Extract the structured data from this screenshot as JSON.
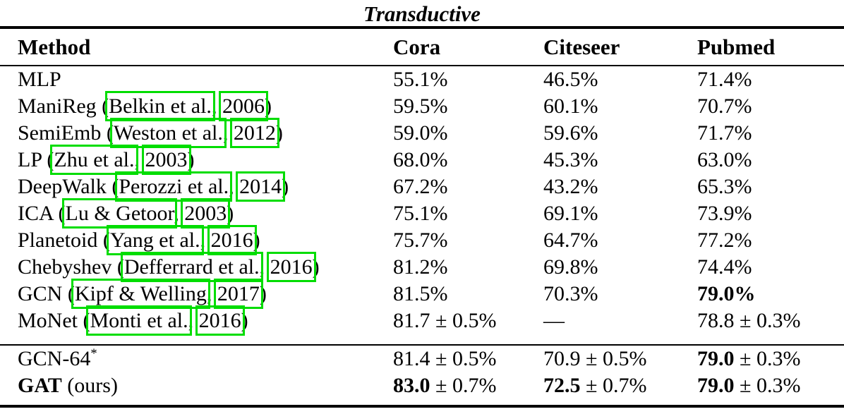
{
  "table": {
    "title": "Transductive",
    "columns": {
      "method": "Method",
      "cora": "Cora",
      "citeseer": "Citeseer",
      "pubmed": "Pubmed"
    },
    "rows": [
      {
        "method": {
          "pre": "MLP"
        },
        "cora": {
          "r": "55.1%"
        },
        "citeseer": {
          "r": "46.5%"
        },
        "pubmed": {
          "r": "71.4%"
        }
      },
      {
        "method": {
          "pre": "ManiReg (",
          "name": "Belkin et al.",
          "sep": ", ",
          "year": "2006",
          "post": ")"
        },
        "cora": {
          "r": "59.5%"
        },
        "citeseer": {
          "r": "60.1%"
        },
        "pubmed": {
          "r": "70.7%"
        }
      },
      {
        "method": {
          "pre": "SemiEmb (",
          "name": "Weston et al.",
          "sep": ", ",
          "year": "2012",
          "post": ")"
        },
        "cora": {
          "r": "59.0%"
        },
        "citeseer": {
          "r": "59.6%"
        },
        "pubmed": {
          "r": "71.7%"
        }
      },
      {
        "method": {
          "pre": "LP (",
          "name": "Zhu et al.",
          "sep": ", ",
          "year": "2003",
          "post": ")"
        },
        "cora": {
          "r": "68.0%"
        },
        "citeseer": {
          "r": "45.3%"
        },
        "pubmed": {
          "r": "63.0%"
        }
      },
      {
        "method": {
          "pre": "DeepWalk (",
          "name": "Perozzi et al.",
          "sep": ", ",
          "year": "2014",
          "post": ")"
        },
        "cora": {
          "r": "67.2%"
        },
        "citeseer": {
          "r": "43.2%"
        },
        "pubmed": {
          "r": "65.3%"
        }
      },
      {
        "method": {
          "pre": "ICA (",
          "name": "Lu & Getoor",
          "sep": ", ",
          "year": "2003",
          "post": ")"
        },
        "cora": {
          "r": "75.1%"
        },
        "citeseer": {
          "r": "69.1%"
        },
        "pubmed": {
          "r": "73.9%"
        }
      },
      {
        "method": {
          "pre": "Planetoid (",
          "name": "Yang et al.",
          "sep": ", ",
          "year": "2016",
          "post": ")"
        },
        "cora": {
          "r": "75.7%"
        },
        "citeseer": {
          "r": "64.7%"
        },
        "pubmed": {
          "r": "77.2%"
        }
      },
      {
        "method": {
          "pre": "Chebyshev (",
          "name": "Defferrard et al.",
          "sep": ", ",
          "year": "2016",
          "post": ")"
        },
        "cora": {
          "r": "81.2%"
        },
        "citeseer": {
          "r": "69.8%"
        },
        "pubmed": {
          "r": "74.4%"
        }
      },
      {
        "method": {
          "pre": "GCN (",
          "name": "Kipf & Welling",
          "sep": ", ",
          "year": "2017",
          "post": ")"
        },
        "cora": {
          "r": "81.5%"
        },
        "citeseer": {
          "r": "70.3%"
        },
        "pubmed": {
          "b": "79.0%"
        }
      },
      {
        "method": {
          "pre": "MoNet (",
          "name": "Monti et al.",
          "sep": ", ",
          "year": "2016",
          "post": ")"
        },
        "cora": {
          "r": "81.7 ± 0.5%"
        },
        "citeseer": {
          "r": "—"
        },
        "pubmed": {
          "r": "78.8 ± 0.3%"
        }
      }
    ],
    "footer_rows": [
      {
        "method": {
          "pre": "GCN-64",
          "sup": "*"
        },
        "cora": {
          "r": "81.4 ± 0.5%"
        },
        "citeseer": {
          "r": "70.9 ± 0.5%"
        },
        "pubmed": {
          "b": "79.0",
          "r": " ± 0.3%"
        }
      },
      {
        "method": {
          "b": "GAT",
          "pre": " (ours)"
        },
        "cora": {
          "b": "83.0",
          "r": " ± 0.7%"
        },
        "citeseer": {
          "b": "72.5",
          "r": " ± 0.7%"
        },
        "pubmed": {
          "b": "79.0",
          "r": " ± 0.3%"
        }
      }
    ]
  },
  "colors": {
    "citation_box": "#00dd00",
    "rule": "#000000",
    "background": "#ffffff"
  }
}
